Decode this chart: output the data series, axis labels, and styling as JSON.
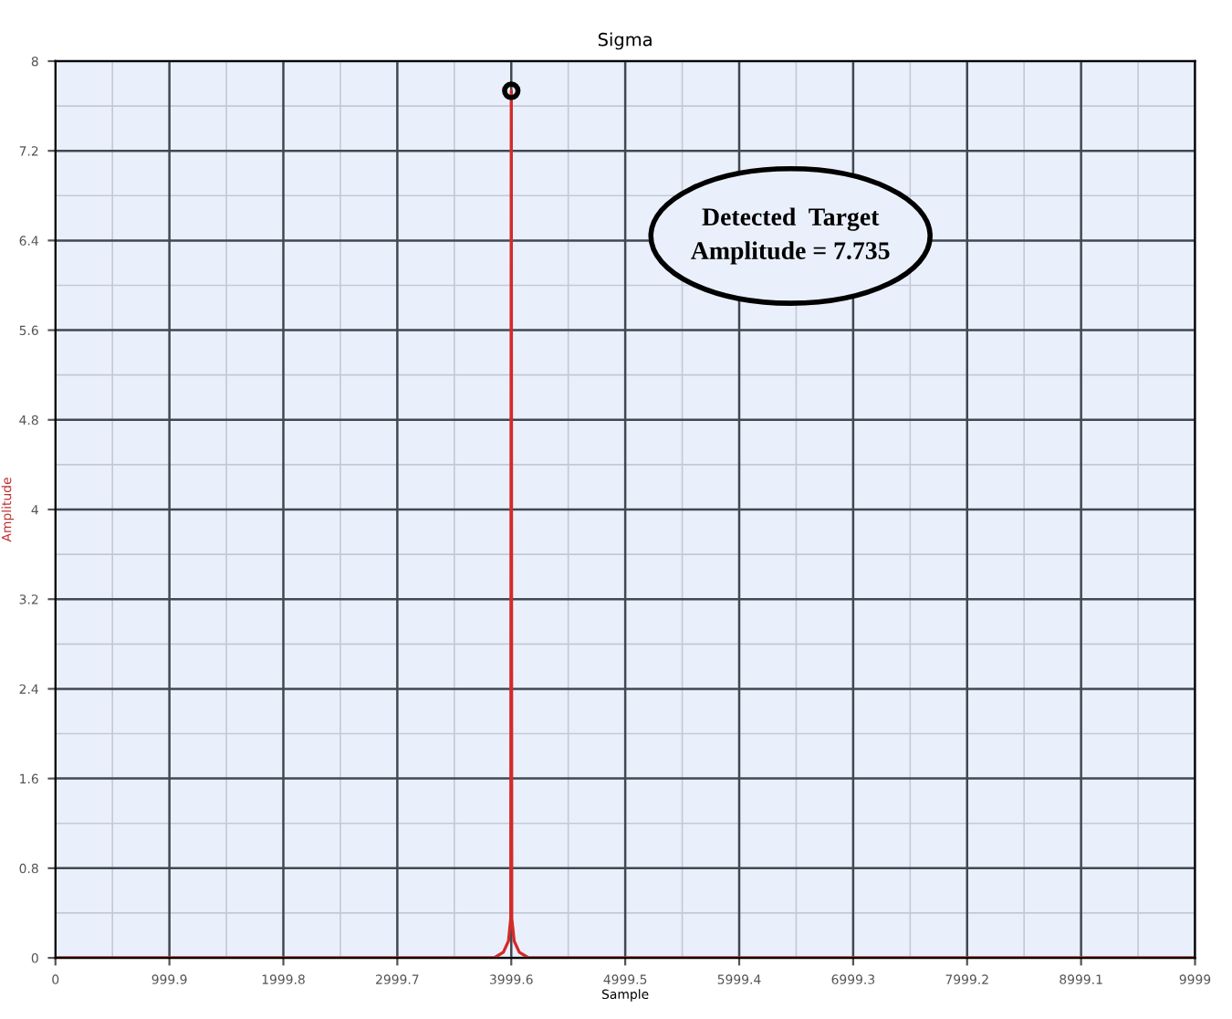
{
  "chart_data": {
    "type": "line",
    "title": "Sigma",
    "xlabel": "Sample",
    "ylabel": "Amplitude",
    "series": [
      {
        "color": "#d42a2a",
        "x": [
          0,
          3850,
          3930,
          3975,
          3995,
          3999.6,
          4004,
          4025,
          4070,
          4150,
          9999
        ],
        "values": [
          0,
          0,
          0.05,
          0.15,
          0.35,
          7.735,
          0.35,
          0.15,
          0.05,
          0,
          0
        ]
      },
      {
        "type": "scatter",
        "color": "#000000",
        "marker": "circle",
        "x": [
          3999.6
        ],
        "values": [
          7.735
        ]
      }
    ],
    "xlim": [
      0,
      9999
    ],
    "xticks": [
      0,
      999.9,
      1999.8,
      2999.7,
      3999.6,
      4999.5,
      5999.4,
      6999.3,
      7999.2,
      8999.1,
      9999
    ],
    "ylim": [
      0,
      8
    ],
    "yticks": [
      0,
      0.8,
      1.6,
      2.4,
      3.2,
      4,
      4.8,
      5.6,
      6.4,
      7.2,
      8
    ],
    "grid": true,
    "annotations": [
      "Detected  Target\nAmplitude = 7.735"
    ]
  }
}
